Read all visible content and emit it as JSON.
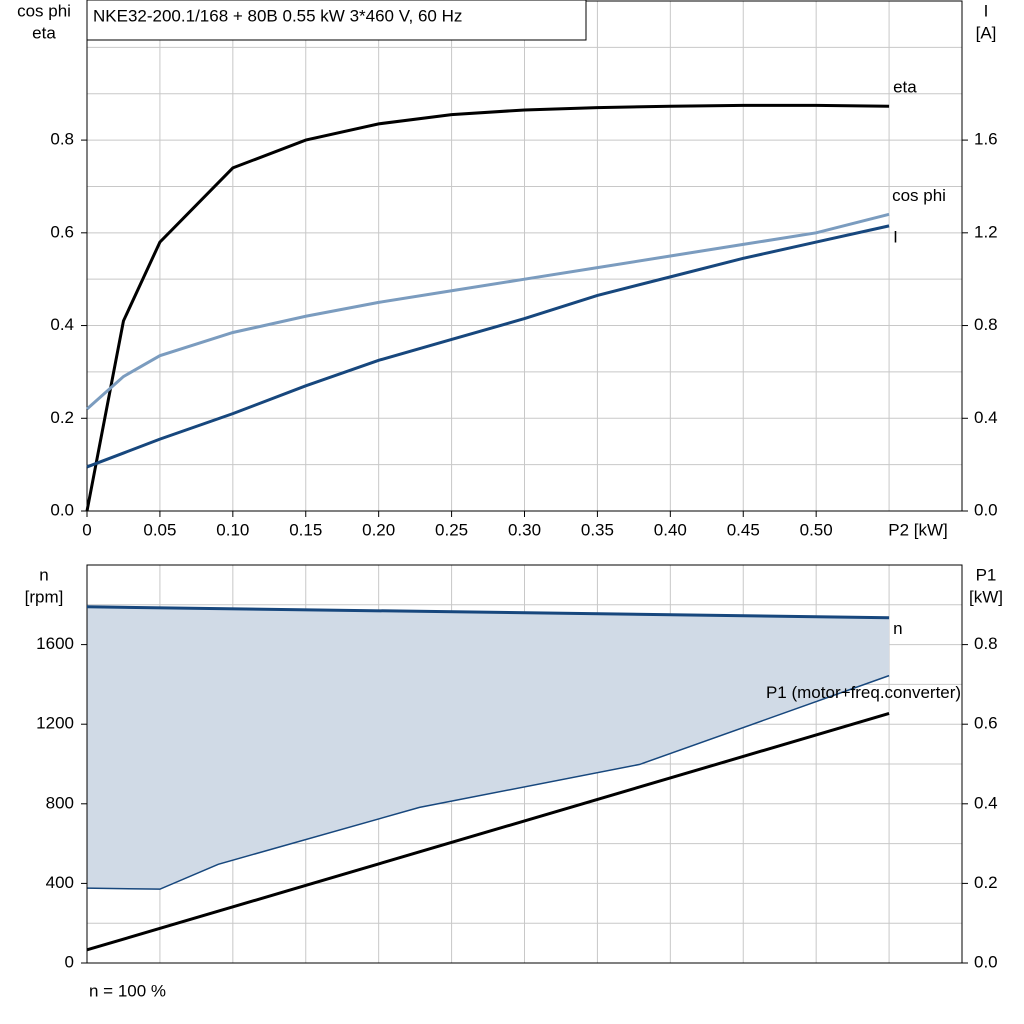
{
  "chart_data": [
    {
      "type": "line",
      "title": "NKE32-200.1/168 + 80B   0.55 kW   3*460 V, 60 Hz",
      "y_label": [
        "cos phi",
        "eta"
      ],
      "y2_label": [
        "I",
        "[A]"
      ],
      "x_label": "P2 [kW]",
      "xlim": [
        0,
        0.6
      ],
      "ylim": [
        0,
        1.1
      ],
      "y2lim": [
        0,
        2.2
      ],
      "xticks": [
        0,
        0.05,
        {
          "value": 0.1,
          "label": "0.10"
        },
        0.15,
        {
          "value": 0.2,
          "label": "0.20"
        },
        0.25,
        {
          "value": 0.3,
          "label": "0.30"
        },
        0.35,
        {
          "value": 0.4,
          "label": "0.40"
        },
        0.45,
        {
          "value": 0.5,
          "label": "0.50"
        }
      ],
      "yticks": [
        {
          "value": 0,
          "label": "0.0"
        },
        0.2,
        0.4,
        0.6,
        0.8
      ],
      "y2ticks": [
        {
          "value": 0,
          "label": "0.0"
        },
        0.4,
        0.8,
        1.2,
        1.6
      ],
      "xgrid": [
        0.05,
        0.1,
        0.15,
        0.2,
        0.25,
        0.3,
        0.35,
        0.4,
        0.45,
        0.5,
        0.55
      ],
      "ygrid": [
        0.1,
        0.2,
        0.3,
        0.4,
        0.5,
        0.6,
        0.7,
        0.8,
        0.9,
        1.0
      ],
      "grid": true,
      "series": [
        {
          "name": "eta",
          "color": "#000000",
          "x": [
            0,
            0.025,
            0.05,
            0.1,
            0.15,
            0.2,
            0.25,
            0.3,
            0.35,
            0.4,
            0.45,
            0.5,
            0.55
          ],
          "values": [
            0,
            0.41,
            0.58,
            0.74,
            0.8,
            0.835,
            0.855,
            0.865,
            0.87,
            0.873,
            0.875,
            0.875,
            0.873
          ]
        },
        {
          "name": "cos phi",
          "color": "#7b9cbf",
          "x": [
            0,
            0.025,
            0.05,
            0.1,
            0.15,
            0.2,
            0.25,
            0.3,
            0.35,
            0.4,
            0.45,
            0.5,
            0.55
          ],
          "values": [
            0.22,
            0.29,
            0.335,
            0.385,
            0.42,
            0.45,
            0.475,
            0.5,
            0.525,
            0.55,
            0.575,
            0.6,
            0.64
          ]
        },
        {
          "name": "I",
          "color": "#17477d",
          "axis": "y2",
          "x": [
            0,
            0.025,
            0.05,
            0.1,
            0.15,
            0.2,
            0.25,
            0.3,
            0.35,
            0.4,
            0.45,
            0.5,
            0.55
          ],
          "values": [
            0.19,
            0.25,
            0.31,
            0.42,
            0.54,
            0.65,
            0.74,
            0.83,
            0.93,
            1.01,
            1.09,
            1.16,
            1.23
          ]
        }
      ]
    },
    {
      "type": "line",
      "y_label": [
        "n",
        "[rpm]"
      ],
      "y2_label": [
        "P1",
        "[kW]"
      ],
      "note": "n = 100 %",
      "xlim": [
        0,
        0.6
      ],
      "ylim": [
        0,
        2000
      ],
      "y2lim": [
        0,
        1.0
      ],
      "yticks": [
        0,
        400,
        800,
        1200,
        1600
      ],
      "y2ticks": [
        {
          "value": 0,
          "label": "0.0"
        },
        0.2,
        0.4,
        0.6,
        0.8
      ],
      "xgrid": [
        0.05,
        0.1,
        0.15,
        0.2,
        0.25,
        0.3,
        0.35,
        0.4,
        0.45,
        0.5,
        0.55
      ],
      "ygrid": [
        200,
        400,
        600,
        800,
        1000,
        1200,
        1400,
        1600,
        1800
      ],
      "grid": true,
      "area_color": "#d0dae6",
      "area_lower": {
        "color": "#17477d",
        "x": [
          0,
          0.05,
          0.09,
          0.228,
          0.379,
          0.55
        ],
        "values": [
          376,
          371,
          496,
          782,
          998,
          1444
        ]
      },
      "series": [
        {
          "name": "n",
          "color": "#17477d",
          "x": [
            0,
            0.55
          ],
          "values": [
            1790,
            1735
          ]
        },
        {
          "name": "P1 (motor+freq.converter)",
          "color": "#000000",
          "axis": "y2",
          "x": [
            0,
            0.55
          ],
          "values": [
            0.033,
            0.627
          ]
        }
      ]
    }
  ]
}
